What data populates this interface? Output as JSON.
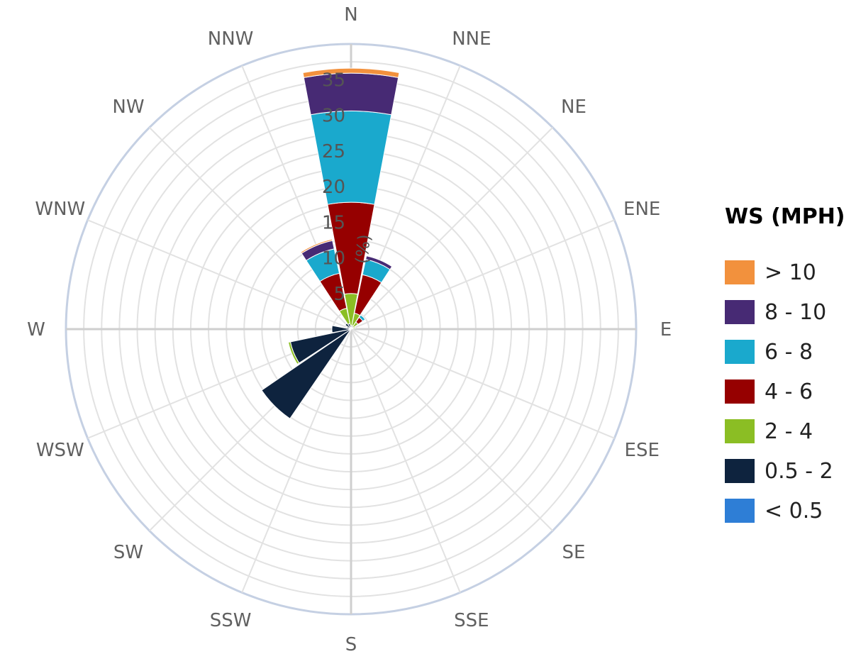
{
  "chart_data": {
    "type": "windrose",
    "directions": [
      "N",
      "NNE",
      "NE",
      "ENE",
      "E",
      "ESE",
      "SE",
      "SSE",
      "S",
      "SSW",
      "SW",
      "WSW",
      "W",
      "WNW",
      "NW",
      "NNW"
    ],
    "radial_ticks": [
      "5",
      "10",
      "15",
      "20",
      "25",
      "30",
      "35"
    ],
    "radial_max": 40,
    "radial_axis_label": "(%)",
    "legend_title": "WS (MPH)",
    "series": [
      {
        "name": "< 0.5",
        "color": "#2e7ed6",
        "values": [
          0,
          0,
          0,
          0,
          0,
          0,
          0,
          0,
          0,
          0,
          0,
          0,
          0,
          0,
          0,
          0
        ]
      },
      {
        "name": "0.5 - 2",
        "color": "#0e233e",
        "values": [
          0.5,
          0.5,
          0.4,
          0.3,
          0,
          0,
          0,
          0,
          0,
          0,
          15.2,
          8.7,
          2.7,
          0.6,
          1.0,
          0.8
        ]
      },
      {
        "name": "2 - 4",
        "color": "#8bbe24",
        "values": [
          4.5,
          1.8,
          0.8,
          0.3,
          0,
          0,
          0,
          0,
          0,
          0,
          0,
          0.3,
          0,
          0,
          0,
          2.2
        ]
      },
      {
        "name": "4 - 6",
        "color": "#960000",
        "values": [
          12.8,
          5.5,
          0.8,
          0,
          0,
          0,
          0,
          0,
          0,
          0,
          0,
          0,
          0,
          0,
          0,
          5.0
        ]
      },
      {
        "name": "6 - 8",
        "color": "#1aa9cd",
        "values": [
          12.8,
          2.2,
          0.4,
          0,
          0,
          0,
          0,
          0,
          0,
          0,
          0,
          0,
          0,
          0,
          0,
          3.5
        ]
      },
      {
        "name": "8 - 10",
        "color": "#472a74",
        "values": [
          5.3,
          0.5,
          0,
          0,
          0,
          0,
          0,
          0,
          0,
          0,
          0,
          0,
          0,
          0,
          0,
          1.2
        ]
      },
      {
        "name": "> 10",
        "color": "#f2913d",
        "values": [
          0.7,
          0,
          0,
          0,
          0,
          0,
          0,
          0,
          0,
          0,
          0,
          0,
          0,
          0,
          0,
          0.2
        ]
      }
    ],
    "legend_order": [
      "> 10",
      "8 - 10",
      "6 - 8",
      "4 - 6",
      "2 - 4",
      "0.5 - 2",
      "< 0.5"
    ]
  }
}
